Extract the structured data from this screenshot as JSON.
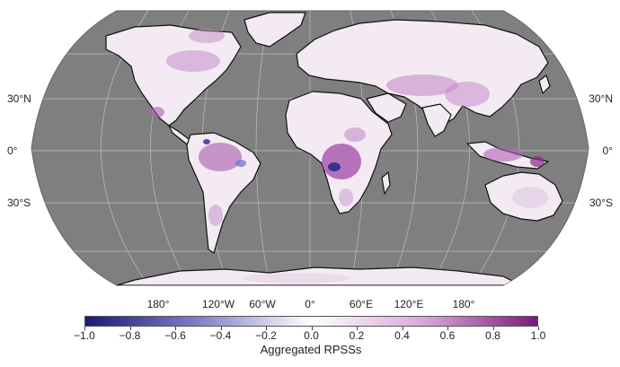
{
  "map": {
    "ocean_color": "#7f7f7f",
    "land_base_color": "#f3eaf3",
    "border_color": "#111111",
    "graticule_color": "#bdbdbd"
  },
  "lat_labels": [
    "30°N",
    "0°",
    "30°S"
  ],
  "lon_labels": [
    "180°",
    "120°W",
    "60°W",
    "0°",
    "60°E",
    "120°E",
    "180°"
  ],
  "colorbar": {
    "title": "Aggregated RPSSs",
    "min": -1.0,
    "max": 1.0,
    "colors": [
      "#1a1a7a",
      "#8080c8",
      "#ffffff",
      "#d9a6d9",
      "#7a1a7a"
    ],
    "tick_labels": [
      "−1.0",
      "−0.8",
      "−0.6",
      "−0.4",
      "−0.2",
      "0.0",
      "0.2",
      "0.4",
      "0.6",
      "0.8",
      "1.0"
    ]
  }
}
